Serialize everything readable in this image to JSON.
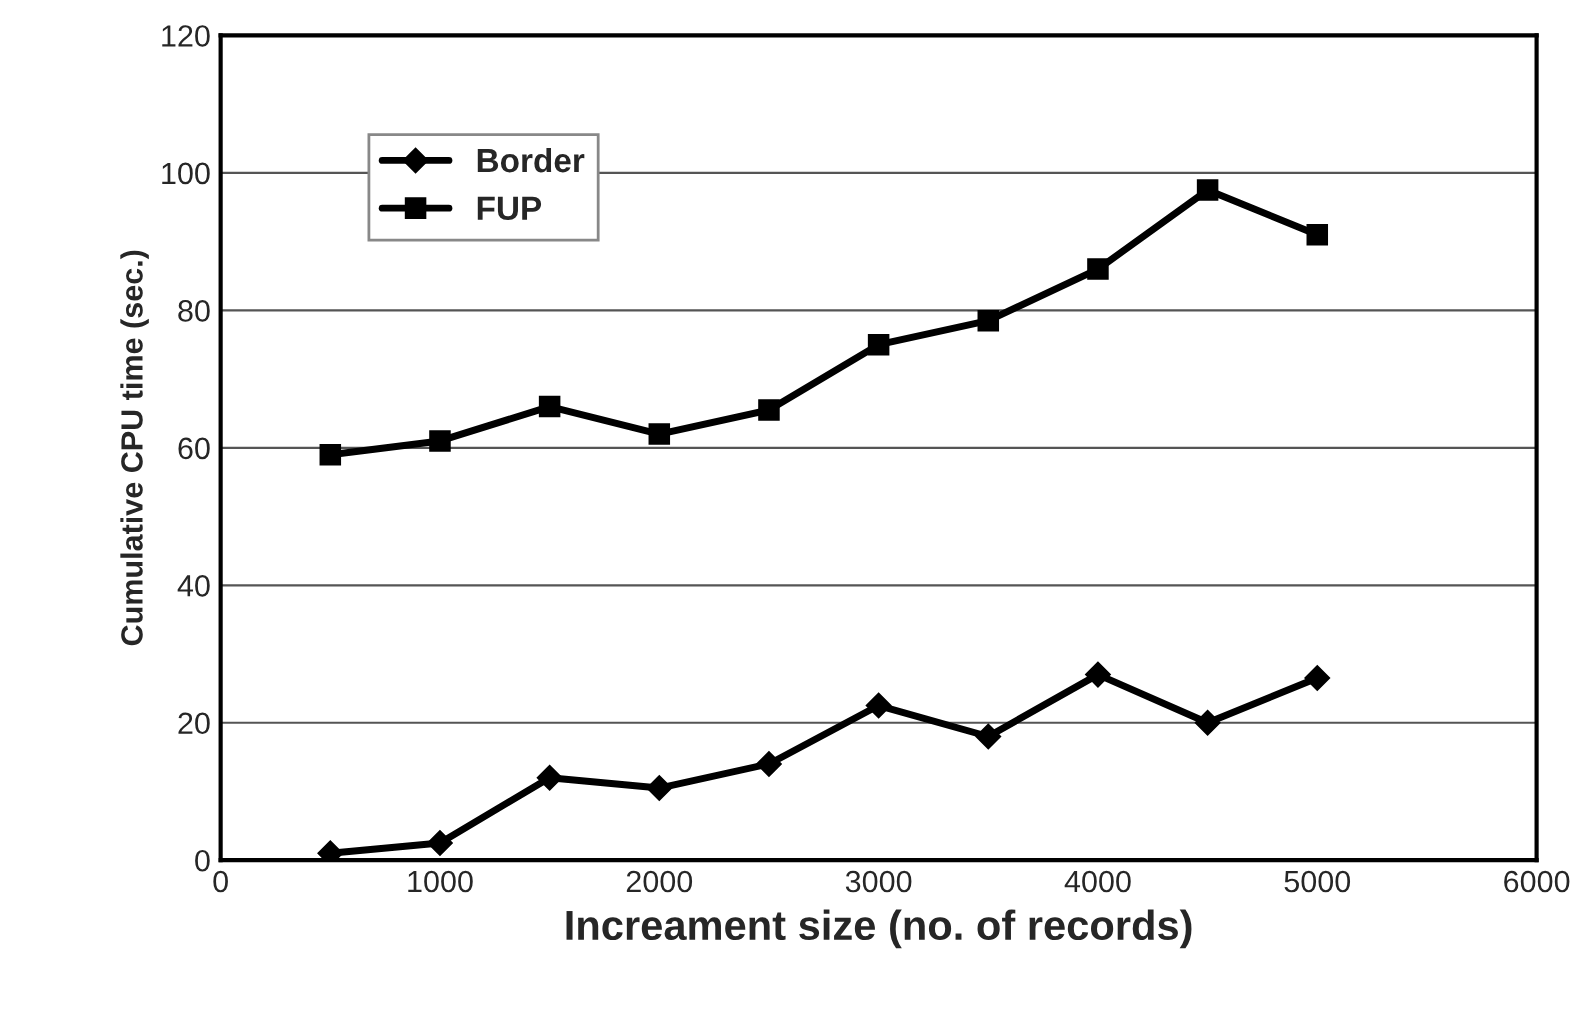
{
  "chart_data": {
    "type": "line",
    "xlabel": "Increament size (no. of records)",
    "ylabel": "Cumulative CPU time (sec.)",
    "x": [
      500,
      1000,
      1500,
      2000,
      2500,
      3000,
      3500,
      4000,
      4500,
      5000
    ],
    "series": [
      {
        "name": "Border",
        "color": "#000000",
        "marker": "diamond",
        "values": [
          1,
          2.5,
          12,
          10.5,
          14,
          22.5,
          18,
          27,
          20,
          26.5
        ]
      },
      {
        "name": "FUP",
        "color": "#000000",
        "marker": "square",
        "values": [
          59,
          61,
          66,
          62,
          65.5,
          75,
          78.5,
          86,
          97.5,
          91
        ]
      }
    ],
    "xlim": [
      0,
      6000
    ],
    "xticks": [
      0,
      1000,
      2000,
      3000,
      4000,
      5000,
      6000
    ],
    "ylim": [
      0,
      120
    ],
    "yticks": [
      0,
      20,
      40,
      60,
      80,
      100,
      120
    ],
    "grid": "y",
    "legend": "top left",
    "line_style": "solid"
  }
}
